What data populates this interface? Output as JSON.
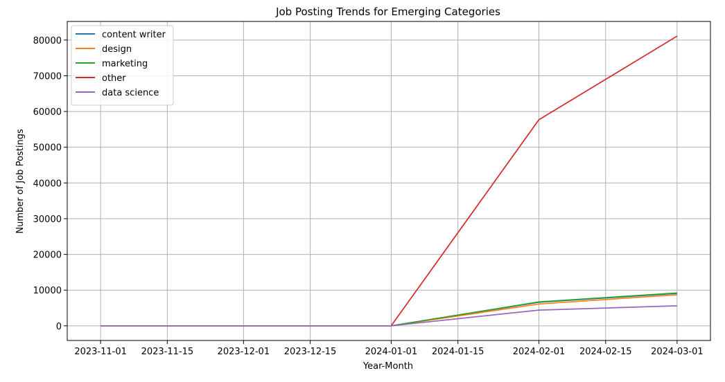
{
  "chart_data": {
    "type": "line",
    "title": "Job Posting Trends for Emerging Categories",
    "xlabel": "Year-Month",
    "ylabel": "Number of Job Postings",
    "x": [
      "2023-11-01",
      "2023-12-01",
      "2024-01-01",
      "2024-02-01",
      "2024-03-01"
    ],
    "series": [
      {
        "name": "content writer",
        "color": "#1f77b4",
        "values": [
          0,
          0,
          0,
          6600,
          9100
        ]
      },
      {
        "name": "design",
        "color": "#ff7f0e",
        "values": [
          0,
          0,
          0,
          6100,
          8700
        ]
      },
      {
        "name": "marketing",
        "color": "#2ca02c",
        "values": [
          0,
          0,
          0,
          6700,
          9200
        ]
      },
      {
        "name": "other",
        "color": "#d62728",
        "values": [
          0,
          0,
          0,
          57700,
          81100
        ]
      },
      {
        "name": "data science",
        "color": "#9467bd",
        "values": [
          0,
          0,
          0,
          4400,
          5600
        ]
      }
    ],
    "xticks": [
      "2023-11-01",
      "2023-11-15",
      "2023-12-01",
      "2023-12-15",
      "2024-01-01",
      "2024-01-15",
      "2024-02-01",
      "2024-02-15",
      "2024-03-01"
    ],
    "yticks": [
      0,
      10000,
      20000,
      30000,
      40000,
      50000,
      60000,
      70000,
      80000
    ],
    "xlim": [
      "2023-10-25",
      "2024-03-08"
    ],
    "ylim": [
      -4100,
      85200
    ],
    "grid": true,
    "legend_position": "top-left"
  }
}
